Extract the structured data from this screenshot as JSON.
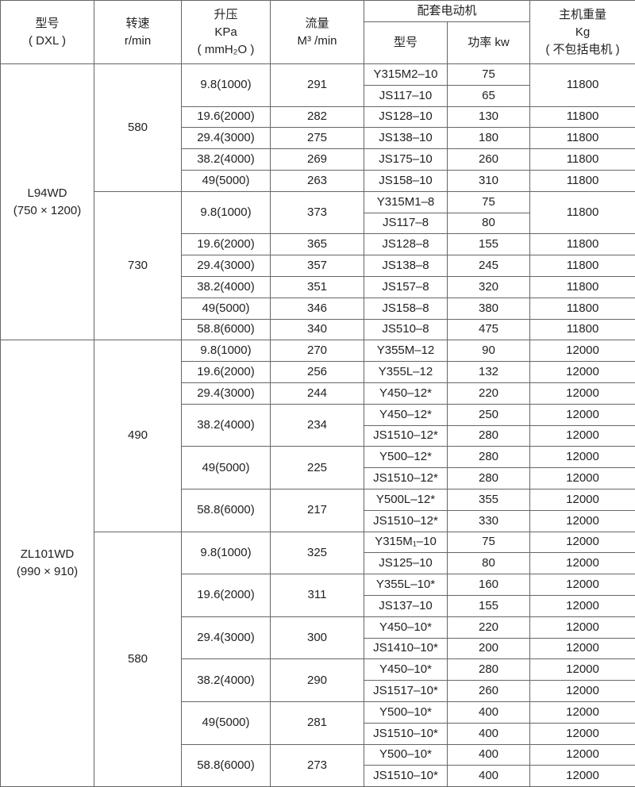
{
  "header": {
    "model": [
      "型号",
      "( DXL )"
    ],
    "speed": [
      "转速",
      "r/min"
    ],
    "pressure": [
      "升压",
      "KPa",
      "( mmH₂O )"
    ],
    "flow": [
      "流量",
      "M³ /min"
    ],
    "motor_group": "配套电动机",
    "motor_model": "型号",
    "motor_power": "功率 kw",
    "weight": [
      "主机重量",
      "Kg",
      "( 不包括电机 )"
    ]
  },
  "models": [
    {
      "name": [
        "L94WD",
        "(750 × 1200)"
      ],
      "speeds": [
        {
          "speed": "580",
          "pressures": [
            {
              "pressure": "9.8(1000)",
              "flow": "291",
              "weight": "11800",
              "motors": [
                {
                  "model": "Y315M2–10",
                  "power": "75"
                },
                {
                  "model": "JS117–10",
                  "power": "65"
                }
              ]
            },
            {
              "pressure": "19.6(2000)",
              "flow": "282",
              "weight": "11800",
              "motors": [
                {
                  "model": "JS128–10",
                  "power": "130"
                }
              ]
            },
            {
              "pressure": "29.4(3000)",
              "flow": "275",
              "weight": "11800",
              "motors": [
                {
                  "model": "JS138–10",
                  "power": "180"
                }
              ]
            },
            {
              "pressure": "38.2(4000)",
              "flow": "269",
              "weight": "11800",
              "motors": [
                {
                  "model": "JS175–10",
                  "power": "260"
                }
              ]
            },
            {
              "pressure": "49(5000)",
              "flow": "263",
              "weight": "11800",
              "motors": [
                {
                  "model": "JS158–10",
                  "power": "310"
                }
              ]
            }
          ]
        },
        {
          "speed": "730",
          "pressures": [
            {
              "pressure": "9.8(1000)",
              "flow": "373",
              "weight": "11800",
              "motors": [
                {
                  "model": "Y315M1–8",
                  "power": "75"
                },
                {
                  "model": "JS117–8",
                  "power": "80"
                }
              ]
            },
            {
              "pressure": "19.6(2000)",
              "flow": "365",
              "weight": "11800",
              "motors": [
                {
                  "model": "JS128–8",
                  "power": "155"
                }
              ]
            },
            {
              "pressure": "29.4(3000)",
              "flow": "357",
              "weight": "11800",
              "motors": [
                {
                  "model": "JS138–8",
                  "power": "245"
                }
              ]
            },
            {
              "pressure": "38.2(4000)",
              "flow": "351",
              "weight": "11800",
              "motors": [
                {
                  "model": "JS157–8",
                  "power": "320"
                }
              ]
            },
            {
              "pressure": "49(5000)",
              "flow": "346",
              "weight": "11800",
              "motors": [
                {
                  "model": "JS158–8",
                  "power": "380"
                }
              ]
            },
            {
              "pressure": "58.8(6000)",
              "flow": "340",
              "weight": "11800",
              "motors": [
                {
                  "model": "JS510–8",
                  "power": "475"
                }
              ]
            }
          ]
        }
      ]
    },
    {
      "name": [
        "ZL101WD",
        "(990 × 910)"
      ],
      "speeds": [
        {
          "speed": "490",
          "pressures": [
            {
              "pressure": "9.8(1000)",
              "flow": "270",
              "motors": [
                {
                  "model": "Y355M–12",
                  "power": "90",
                  "weight": "12000"
                }
              ]
            },
            {
              "pressure": "19.6(2000)",
              "flow": "256",
              "motors": [
                {
                  "model": "Y355L–12",
                  "power": "132",
                  "weight": "12000"
                }
              ]
            },
            {
              "pressure": "29.4(3000)",
              "flow": "244",
              "motors": [
                {
                  "model": "Y450–12*",
                  "power": "220",
                  "weight": "12000"
                }
              ]
            },
            {
              "pressure": "38.2(4000)",
              "flow": "234",
              "motors": [
                {
                  "model": "Y450–12*",
                  "power": "250",
                  "weight": "12000"
                },
                {
                  "model": "JS1510–12*",
                  "power": "280",
                  "weight": "12000"
                }
              ]
            },
            {
              "pressure": "49(5000)",
              "flow": "225",
              "motors": [
                {
                  "model": "Y500–12*",
                  "power": "280",
                  "weight": "12000"
                },
                {
                  "model": "JS1510–12*",
                  "power": "280",
                  "weight": "12000"
                }
              ]
            },
            {
              "pressure": "58.8(6000)",
              "flow": "217",
              "motors": [
                {
                  "model": "Y500L–12*",
                  "power": "355",
                  "weight": "12000"
                },
                {
                  "model": "JS1510–12*",
                  "power": "330",
                  "weight": "12000"
                }
              ]
            }
          ]
        },
        {
          "speed": "580",
          "pressures": [
            {
              "pressure": "9.8(1000)",
              "flow": "325",
              "motors": [
                {
                  "model": "Y315M₁–10",
                  "power": "75",
                  "weight": "12000"
                },
                {
                  "model": "JS125–10",
                  "power": "80",
                  "weight": "12000"
                }
              ]
            },
            {
              "pressure": "19.6(2000)",
              "flow": "311",
              "motors": [
                {
                  "model": "Y355L–10*",
                  "power": "160",
                  "weight": "12000"
                },
                {
                  "model": "JS137–10",
                  "power": "155",
                  "weight": "12000"
                }
              ]
            },
            {
              "pressure": "29.4(3000)",
              "flow": "300",
              "motors": [
                {
                  "model": "Y450–10*",
                  "power": "220",
                  "weight": "12000"
                },
                {
                  "model": "JS1410–10*",
                  "power": "200",
                  "weight": "12000"
                }
              ]
            },
            {
              "pressure": "38.2(4000)",
              "flow": "290",
              "motors": [
                {
                  "model": "Y450–10*",
                  "power": "280",
                  "weight": "12000"
                },
                {
                  "model": "JS1517–10*",
                  "power": "260",
                  "weight": "12000"
                }
              ]
            },
            {
              "pressure": "49(5000)",
              "flow": "281",
              "motors": [
                {
                  "model": "Y500–10*",
                  "power": "400",
                  "weight": "12000"
                },
                {
                  "model": "JS1510–10*",
                  "power": "400",
                  "weight": "12000"
                }
              ]
            },
            {
              "pressure": "58.8(6000)",
              "flow": "273",
              "motors": [
                {
                  "model": "Y500–10*",
                  "power": "400",
                  "weight": "12000"
                },
                {
                  "model": "JS1510–10*",
                  "power": "400",
                  "weight": "12000"
                }
              ]
            }
          ]
        }
      ]
    }
  ]
}
